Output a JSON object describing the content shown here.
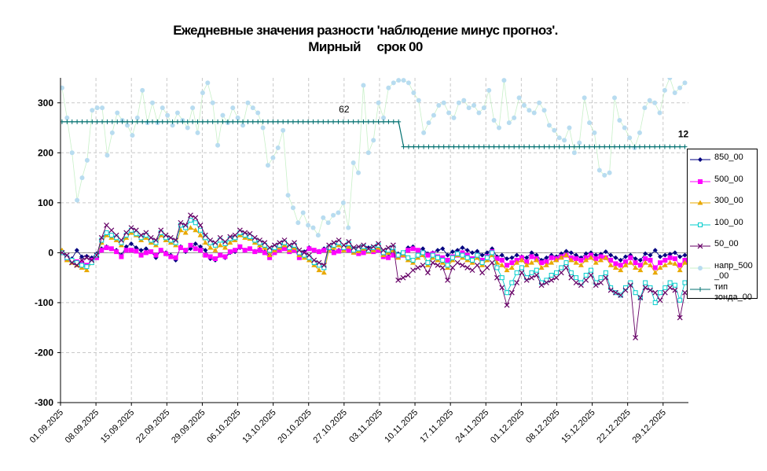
{
  "title": {
    "line1": "Ежедневные значения разности 'наблюдение минус прогноз'.",
    "line2": "Мирный     срок 00"
  },
  "chart_data": {
    "type": "line",
    "ylim": [
      -300,
      350
    ],
    "yticks": [
      -300,
      -200,
      -100,
      0,
      100,
      200,
      300
    ],
    "x_start": "2025-09-01",
    "x_end": "2026-01-03",
    "xtick_labels": [
      "01.09.2025",
      "08.09.2025",
      "15.09.2025",
      "22.09.2025",
      "29.09.2025",
      "06.10.2025",
      "13.10.2025",
      "20.10.2025",
      "27.10.2025",
      "03.11.2025",
      "10.11.2025",
      "17.11.2025",
      "24.11.2025",
      "01.12.2025",
      "08.12.2025",
      "15.12.2025",
      "22.12.2025",
      "29.12.2025"
    ],
    "grid": true,
    "legend_position": "right",
    "annotations": [
      {
        "text": "62",
        "x": "2025-10-27",
        "y": 262
      },
      {
        "text": "12",
        "x": "2026-01-02",
        "y": 212
      }
    ],
    "series": [
      {
        "name": "850_00",
        "color": "#000080",
        "marker": "diamond",
        "values": [
          2,
          -10,
          -12,
          5,
          -8,
          -7,
          -10,
          -2,
          8,
          12,
          8,
          5,
          -5,
          12,
          18,
          10,
          5,
          8,
          2,
          -10,
          5,
          0,
          -5,
          -15,
          12,
          2,
          8,
          18,
          12,
          5,
          -12,
          -15,
          -5,
          -10,
          0,
          2,
          10,
          5,
          8,
          3,
          7,
          2,
          -5,
          5,
          8,
          12,
          5,
          10,
          -5,
          2,
          10,
          5,
          3,
          8,
          12,
          2,
          5,
          10,
          15,
          8,
          2,
          5,
          10,
          5,
          8,
          -3,
          -8,
          5,
          -2,
          0,
          10,
          12,
          5,
          8,
          -2,
          0,
          5,
          8,
          -5,
          2,
          5,
          10,
          5,
          0,
          3,
          -5,
          0,
          8,
          -8,
          -5,
          -12,
          -10,
          -5,
          -8,
          -10,
          0,
          -5,
          -15,
          -10,
          -5,
          -8,
          -2,
          3,
          0,
          -5,
          -10,
          -2,
          0,
          -5,
          -3,
          2,
          -5,
          -10,
          -15,
          -8,
          -5,
          -12,
          -15,
          -2,
          -5,
          5,
          -8,
          -5,
          -3,
          0,
          -8,
          -5
        ]
      },
      {
        "name": "500_00",
        "color": "#ff00ff",
        "marker": "square",
        "values": [
          0,
          -12,
          -15,
          -18,
          -20,
          -25,
          -15,
          -10,
          5,
          10,
          8,
          2,
          -8,
          5,
          5,
          3,
          -5,
          0,
          2,
          -5,
          5,
          -2,
          -8,
          -10,
          10,
          5,
          15,
          8,
          5,
          -5,
          -8,
          -12,
          -5,
          -8,
          2,
          5,
          12,
          5,
          8,
          2,
          5,
          0,
          -10,
          0,
          5,
          8,
          2,
          5,
          -10,
          -2,
          8,
          5,
          2,
          5,
          10,
          0,
          3,
          8,
          5,
          3,
          -2,
          0,
          5,
          2,
          5,
          -8,
          -10,
          -5,
          -8,
          -5,
          5,
          8,
          5,
          0,
          -5,
          -2,
          -8,
          -10,
          -15,
          -8,
          -5,
          0,
          -5,
          -12,
          -5,
          -15,
          -8,
          2,
          -12,
          -15,
          -25,
          -20,
          -15,
          -10,
          -18,
          -8,
          -12,
          -20,
          -18,
          -10,
          -12,
          -8,
          -5,
          -10,
          -12,
          -15,
          -10,
          -5,
          -12,
          -8,
          -10,
          -15,
          -22,
          -25,
          -18,
          -10,
          -20,
          -25,
          -12,
          -15,
          -30,
          -20,
          -15,
          -10,
          -12,
          -25,
          -15
        ]
      },
      {
        "name": "300_00",
        "color": "#e8a800",
        "marker": "triangle",
        "values": [
          5,
          -15,
          -20,
          -25,
          -30,
          -35,
          -20,
          -5,
          20,
          35,
          30,
          25,
          15,
          30,
          40,
          35,
          25,
          30,
          20,
          15,
          35,
          25,
          20,
          15,
          45,
          40,
          50,
          45,
          35,
          20,
          10,
          5,
          15,
          10,
          20,
          25,
          35,
          30,
          28,
          20,
          15,
          10,
          -5,
          5,
          10,
          15,
          5,
          10,
          -5,
          -10,
          -15,
          -25,
          -35,
          -40,
          5,
          10,
          15,
          5,
          12,
          0,
          3,
          8,
          2,
          5,
          10,
          -5,
          0,
          5,
          -10,
          -5,
          -15,
          -20,
          -10,
          -5,
          -25,
          -10,
          -15,
          -20,
          -30,
          -15,
          -5,
          -10,
          -15,
          -20,
          -10,
          -25,
          -15,
          -5,
          -20,
          -25,
          -35,
          -30,
          -20,
          -15,
          -25,
          -20,
          -15,
          -30,
          -25,
          -20,
          -15,
          -10,
          -5,
          -15,
          -20,
          -25,
          -15,
          -10,
          -20,
          -15,
          -10,
          -25,
          -30,
          -35,
          -25,
          -20,
          -30,
          -35,
          -20,
          -25,
          -40,
          -30,
          -25,
          -20,
          -22,
          -35,
          -20
        ]
      },
      {
        "name": "100_00",
        "color": "#00cccc",
        "marker": "square-open",
        "values": [
          0,
          -10,
          -15,
          -20,
          -25,
          -28,
          -20,
          -5,
          25,
          40,
          35,
          30,
          20,
          35,
          45,
          38,
          30,
          35,
          25,
          20,
          40,
          30,
          25,
          20,
          55,
          50,
          65,
          60,
          45,
          30,
          20,
          15,
          25,
          18,
          28,
          30,
          40,
          35,
          32,
          25,
          20,
          15,
          5,
          10,
          15,
          20,
          10,
          15,
          0,
          -5,
          -10,
          -20,
          -25,
          -30,
          10,
          15,
          20,
          10,
          18,
          5,
          8,
          12,
          5,
          10,
          15,
          0,
          5,
          10,
          -5,
          0,
          -10,
          -15,
          -5,
          0,
          -20,
          -5,
          -10,
          -15,
          -25,
          -10,
          -2,
          -5,
          -10,
          -15,
          -5,
          -20,
          -10,
          0,
          -30,
          -50,
          -80,
          -60,
          -40,
          -30,
          -50,
          -40,
          -35,
          -60,
          -55,
          -45,
          -40,
          -30,
          -20,
          -40,
          -50,
          -60,
          -45,
          -35,
          -60,
          -50,
          -40,
          -70,
          -80,
          -85,
          -70,
          -60,
          -80,
          -90,
          -60,
          -70,
          -100,
          -80,
          -70,
          -60,
          -65,
          -95,
          -60
        ]
      },
      {
        "name": "50_00",
        "color": "#660066",
        "marker": "x",
        "values": [
          0,
          -5,
          -20,
          -25,
          -15,
          -10,
          -15,
          -5,
          30,
          55,
          45,
          35,
          25,
          40,
          50,
          45,
          35,
          40,
          30,
          25,
          45,
          35,
          30,
          25,
          60,
          55,
          75,
          70,
          55,
          35,
          25,
          20,
          30,
          22,
          32,
          35,
          45,
          40,
          38,
          30,
          25,
          20,
          10,
          15,
          20,
          25,
          15,
          20,
          5,
          0,
          -5,
          -15,
          -20,
          -25,
          15,
          20,
          25,
          15,
          22,
          10,
          12,
          15,
          8,
          12,
          18,
          5,
          10,
          15,
          -55,
          -50,
          -45,
          -35,
          -30,
          -25,
          -40,
          -20,
          -25,
          -30,
          -55,
          -30,
          -20,
          -25,
          -30,
          -35,
          -25,
          -40,
          -30,
          -20,
          -50,
          -70,
          -105,
          -80,
          -60,
          -40,
          -55,
          -50,
          -45,
          -65,
          -60,
          -55,
          -50,
          -40,
          -30,
          -50,
          -60,
          -65,
          -55,
          -45,
          -65,
          -60,
          -50,
          -75,
          -80,
          -85,
          -75,
          -65,
          -170,
          -90,
          -70,
          -75,
          -80,
          -95,
          -80,
          -70,
          -75,
          -130,
          -80
        ]
      },
      {
        "name": "напр_500_00",
        "color": "#b8dcf0",
        "marker": "circle",
        "values": [
          330,
          270,
          200,
          105,
          150,
          185,
          285,
          290,
          290,
          195,
          240,
          280,
          265,
          255,
          235,
          270,
          325,
          260,
          300,
          260,
          290,
          275,
          255,
          280,
          265,
          250,
          290,
          240,
          320,
          340,
          300,
          215,
          275,
          260,
          290,
          270,
          255,
          300,
          290,
          280,
          250,
          175,
          190,
          210,
          245,
          115,
          90,
          60,
          80,
          55,
          50,
          35,
          70,
          60,
          75,
          80,
          100,
          50,
          180,
          160,
          335,
          200,
          225,
          300,
          270,
          330,
          340,
          345,
          345,
          340,
          320,
          305,
          240,
          260,
          275,
          295,
          300,
          280,
          270,
          300,
          305,
          290,
          295,
          280,
          290,
          325,
          265,
          250,
          345,
          260,
          270,
          310,
          295,
          285,
          280,
          300,
          285,
          255,
          245,
          230,
          225,
          250,
          200,
          220,
          310,
          260,
          240,
          165,
          155,
          160,
          310,
          265,
          250,
          230,
          210,
          240,
          290,
          305,
          300,
          280,
          325,
          350,
          320,
          330,
          340
        ]
      },
      {
        "name": "тип\nзонда_00",
        "color": "#007070",
        "marker": "plus",
        "values": [
          262,
          262,
          262,
          262,
          262,
          262,
          262,
          262,
          262,
          262,
          262,
          262,
          262,
          262,
          262,
          262,
          262,
          262,
          262,
          262,
          262,
          262,
          262,
          262,
          262,
          262,
          262,
          262,
          262,
          262,
          262,
          262,
          262,
          262,
          262,
          262,
          262,
          262,
          262,
          262,
          262,
          262,
          262,
          262,
          262,
          262,
          262,
          262,
          262,
          262,
          262,
          262,
          262,
          262,
          262,
          262,
          262,
          262,
          262,
          262,
          262,
          262,
          262,
          262,
          262,
          262,
          262,
          262,
          212,
          212,
          212,
          212,
          212,
          212,
          212,
          212,
          212,
          212,
          212,
          212,
          212,
          212,
          212,
          212,
          212,
          212,
          212,
          212,
          212,
          212,
          212,
          212,
          212,
          212,
          212,
          212,
          212,
          212,
          212,
          212,
          212,
          212,
          212,
          212,
          212,
          212,
          212,
          212,
          212,
          212,
          212,
          212,
          212,
          212,
          212,
          212,
          212,
          212,
          212,
          212,
          212,
          212,
          212,
          212,
          212
        ]
      }
    ]
  }
}
